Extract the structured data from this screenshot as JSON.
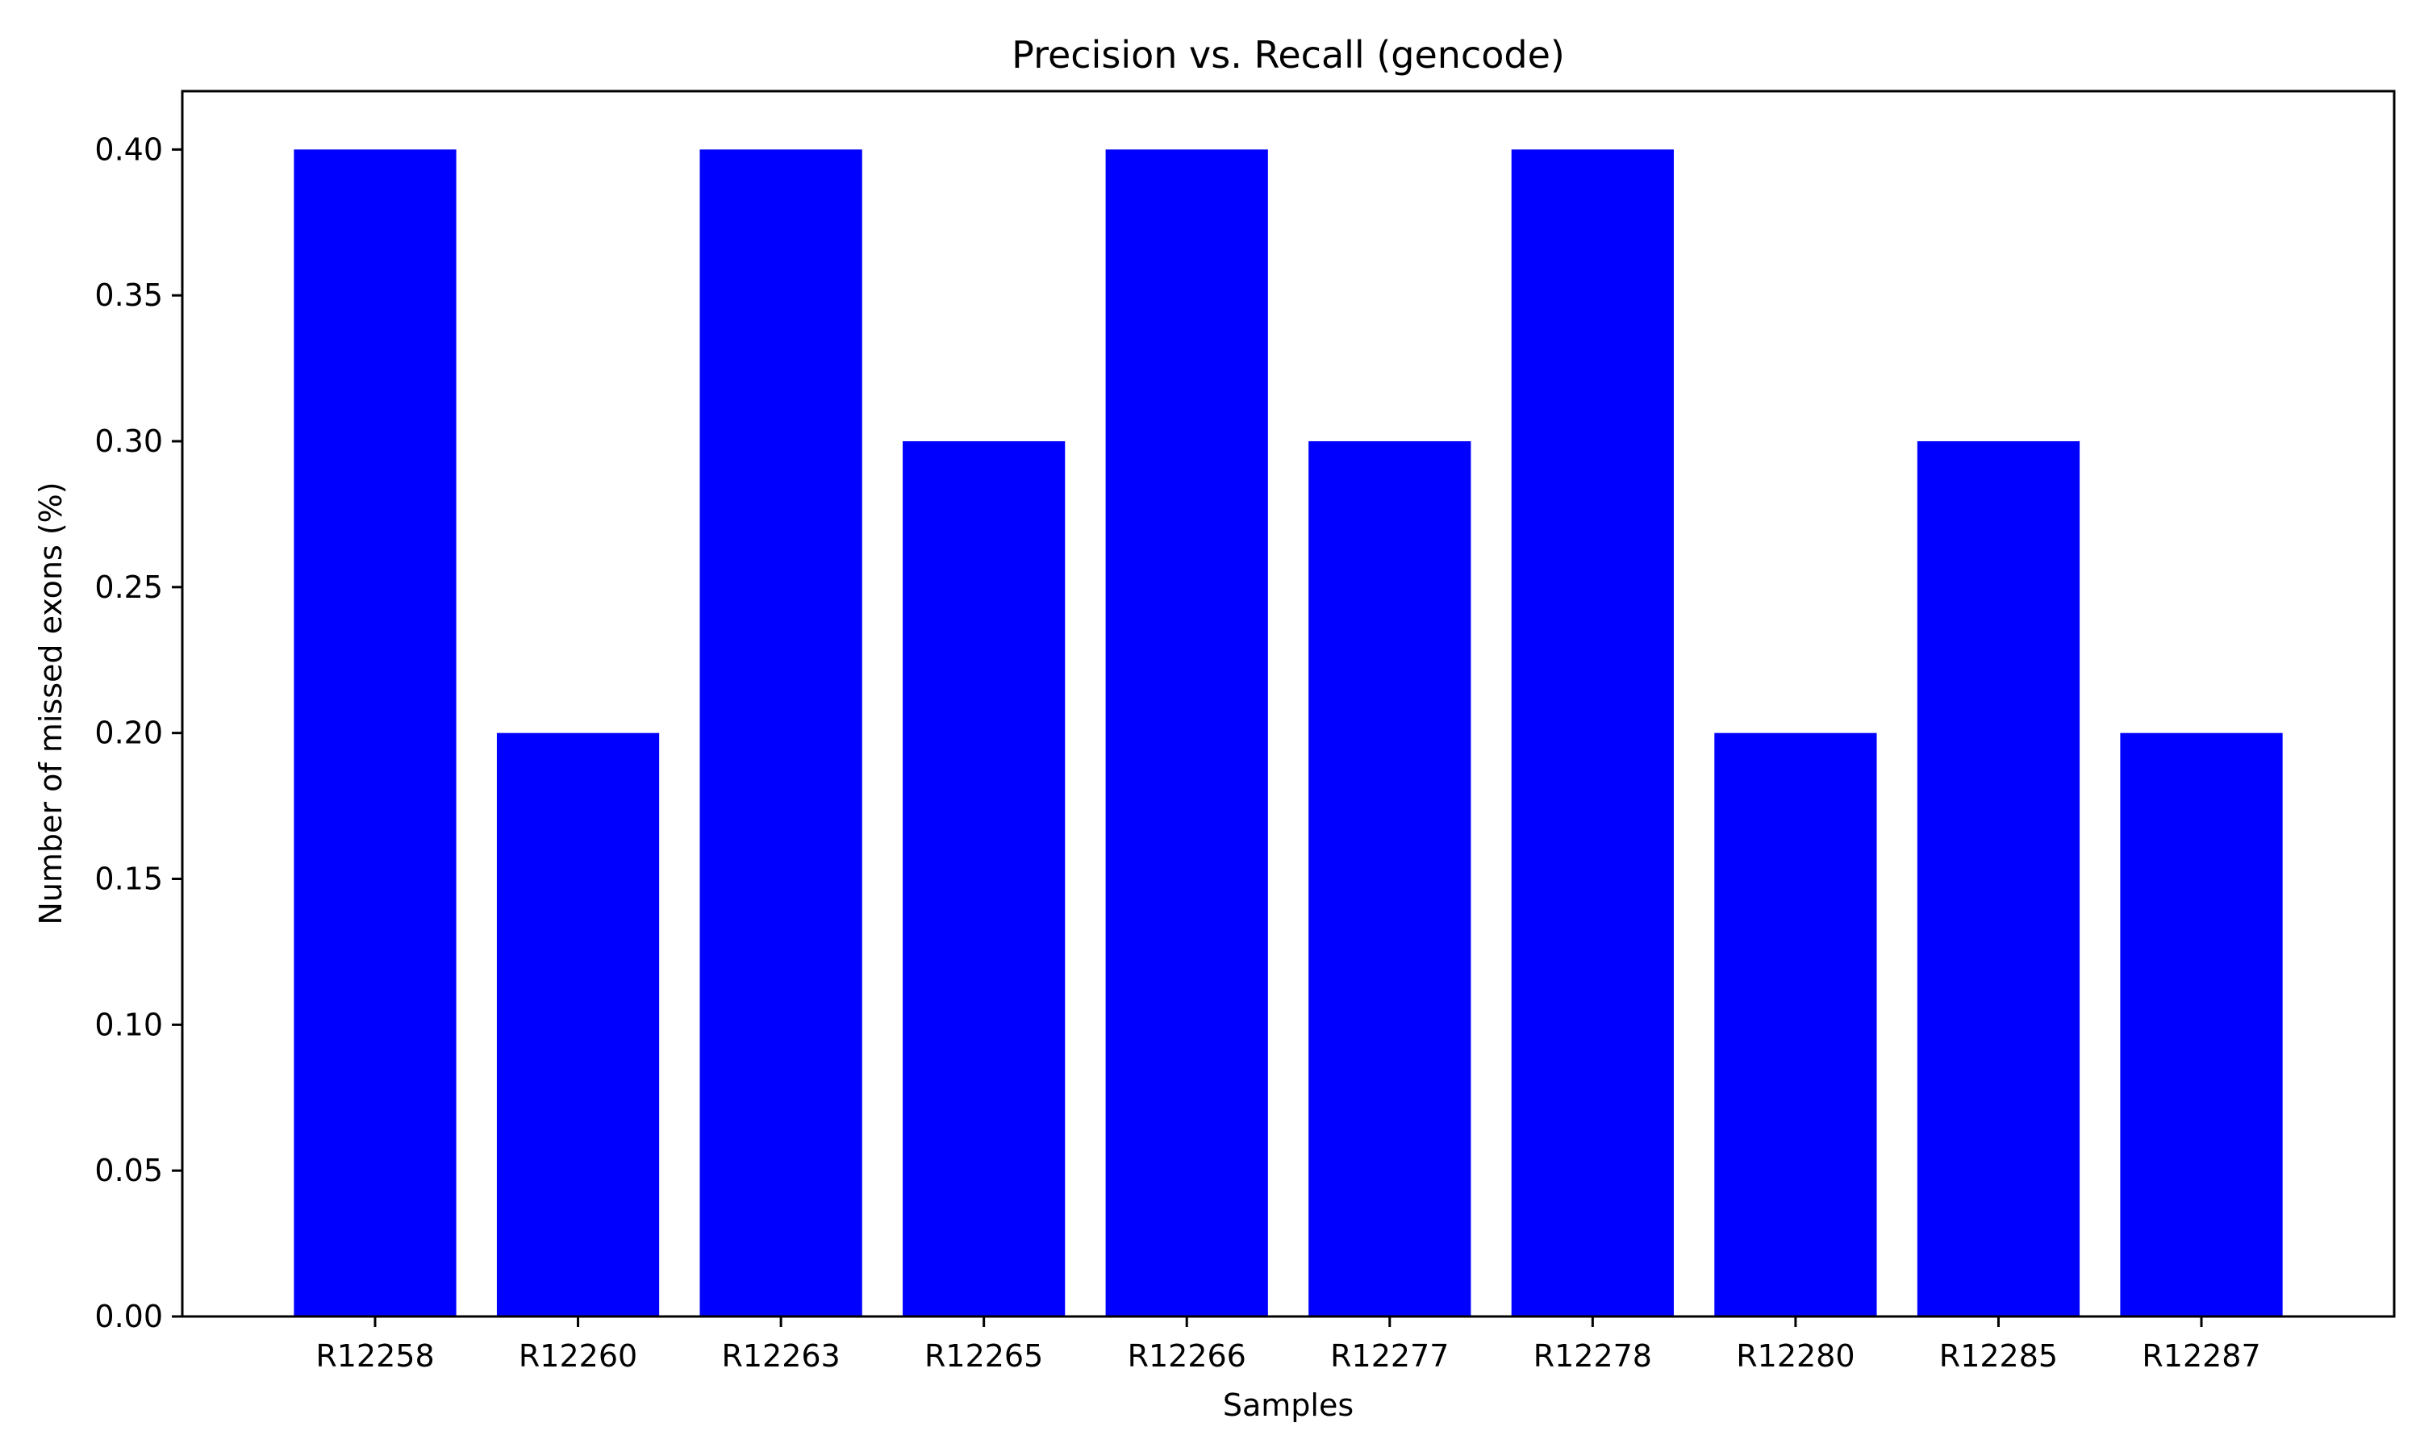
{
  "chart_data": {
    "type": "bar",
    "title": "Precision vs. Recall (gencode)",
    "xlabel": "Samples",
    "ylabel": "Number of missed exons (%)",
    "categories": [
      "R12258",
      "R12260",
      "R12263",
      "R12265",
      "R12266",
      "R12277",
      "R12278",
      "R12280",
      "R12285",
      "R12287"
    ],
    "values": [
      0.4,
      0.2,
      0.4,
      0.3,
      0.4,
      0.3,
      0.4,
      0.2,
      0.3,
      0.2
    ],
    "ylim": [
      0,
      0.42
    ],
    "yticks": [
      "0.00",
      "0.05",
      "0.10",
      "0.15",
      "0.20",
      "0.25",
      "0.30",
      "0.35",
      "0.40"
    ],
    "grid": false,
    "bar_color": "#0000ff"
  }
}
